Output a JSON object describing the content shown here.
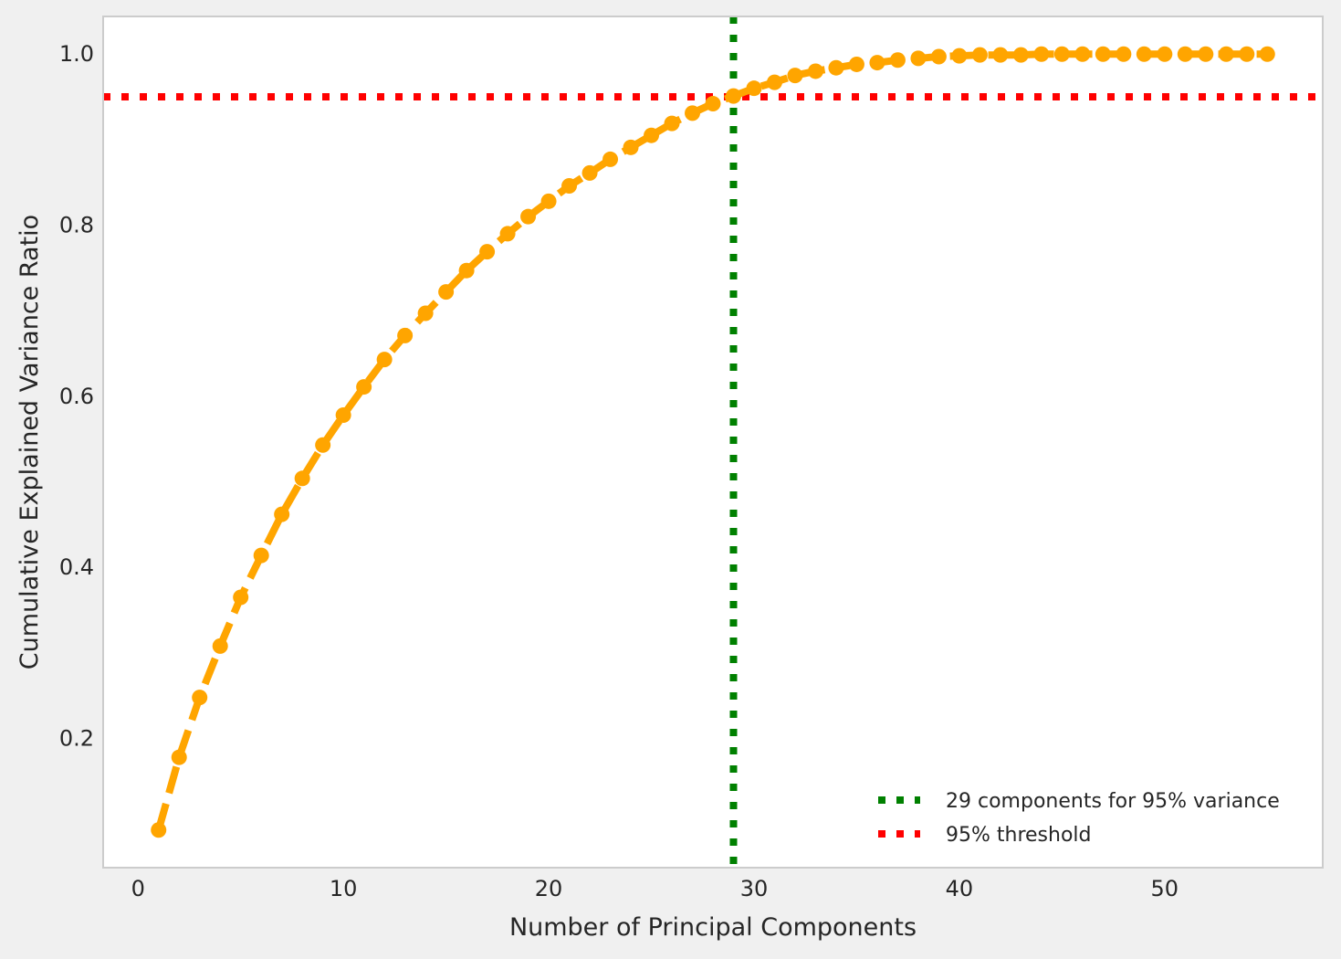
{
  "chart_data": {
    "type": "line",
    "xlabel": "Number of Principal Components",
    "ylabel": "Cumulative Explained Variance Ratio",
    "xlim": [
      -1.7,
      57.7
    ],
    "ylim": [
      0.049,
      1.044
    ],
    "xticks": [
      0,
      10,
      20,
      30,
      40,
      50
    ],
    "yticks": [
      0.2,
      0.4,
      0.6,
      0.8,
      1.0
    ],
    "grid": false,
    "legend_position": "lower-right",
    "colors": {
      "curve": "#ffa500",
      "vline": "#008000",
      "hline": "#ff0000",
      "frame": "#cccccc",
      "plot_bg": "#ffffff",
      "page_bg": "#f0f0f0"
    },
    "series": [
      {
        "x": [
          1,
          2,
          3,
          4,
          5,
          6,
          7,
          8,
          9,
          10,
          11,
          12,
          13,
          14,
          15,
          16,
          17,
          18,
          19,
          20,
          21,
          22,
          23,
          24,
          25,
          26,
          27,
          28,
          29,
          30,
          31,
          32,
          33,
          34,
          35,
          36,
          37,
          38,
          39,
          40,
          41,
          42,
          43,
          44,
          45,
          46,
          47,
          48,
          49,
          50,
          51,
          52,
          53,
          54,
          55
        ],
        "values": [
          0.093,
          0.178,
          0.248,
          0.308,
          0.365,
          0.414,
          0.462,
          0.504,
          0.543,
          0.578,
          0.611,
          0.643,
          0.671,
          0.697,
          0.722,
          0.747,
          0.769,
          0.79,
          0.81,
          0.828,
          0.846,
          0.861,
          0.877,
          0.891,
          0.905,
          0.919,
          0.931,
          0.942,
          0.951,
          0.96,
          0.967,
          0.975,
          0.98,
          0.984,
          0.988,
          0.99,
          0.993,
          0.995,
          0.997,
          0.998,
          0.999,
          0.999,
          0.999,
          1.0,
          1.0,
          1.0,
          1.0,
          1.0,
          1.0,
          1.0,
          1.0,
          1.0,
          1.0,
          1.0,
          1.0
        ]
      }
    ],
    "reference_lines": [
      {
        "orientation": "vertical",
        "value": 29,
        "label": "29 components for 95% variance"
      },
      {
        "orientation": "horizontal",
        "value": 0.95,
        "label": "95% threshold"
      }
    ]
  }
}
